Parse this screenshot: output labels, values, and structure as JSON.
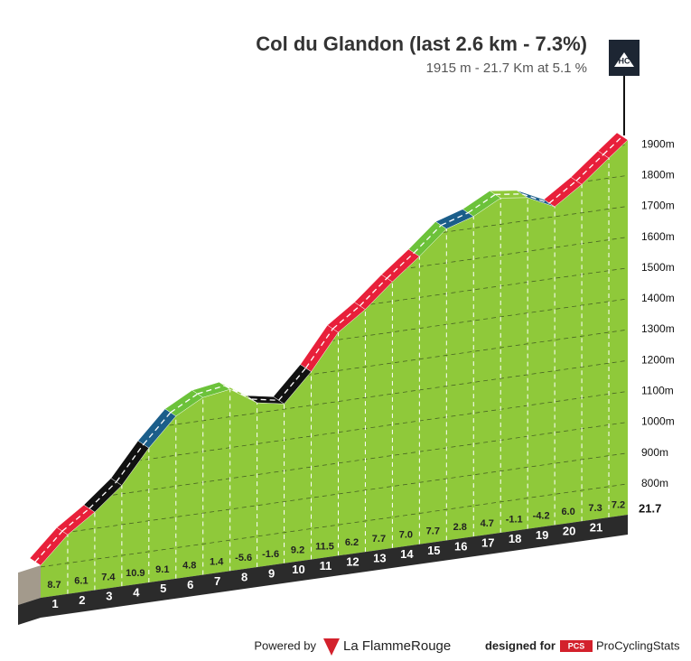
{
  "chart_data": {
    "type": "climb-profile",
    "title": "Col du Glandon (last 2.6 km - 7.3%)",
    "subtitle": "1915 m - 21.7 Km at 5.1 %",
    "climb_category": "HC",
    "x": [
      0,
      1,
      2,
      3,
      4,
      5,
      6,
      7,
      8,
      9,
      10,
      11,
      12,
      13,
      14,
      15,
      16,
      17,
      18,
      19,
      20,
      21,
      21.7
    ],
    "elevations": [
      805,
      892,
      953,
      1027,
      1136,
      1227,
      1275,
      1289,
      1233,
      1217,
      1309,
      1424,
      1486,
      1563,
      1633,
      1710,
      1738,
      1785,
      1774,
      1732,
      1792,
      1865,
      1915
    ],
    "gradients": [
      8.7,
      6.1,
      7.4,
      10.9,
      9.1,
      4.8,
      1.4,
      -5.6,
      -1.6,
      9.2,
      11.5,
      6.2,
      7.7,
      7.0,
      7.7,
      2.8,
      4.7,
      -1.1,
      -4.2,
      6.0,
      7.3,
      7.2
    ],
    "gradient_labels": [
      "8.7",
      "6.1",
      "7.4",
      "10.9",
      "9.1",
      "4.8",
      "1.4",
      "-5.6",
      "-1.6",
      "9.2",
      "11.5",
      "6.2",
      "7.7",
      "7.0",
      "7.7",
      "2.8",
      "4.7",
      "-1.1",
      "-4.2",
      "6.0",
      "7.3",
      "7.2"
    ],
    "segment_colors": [
      "#e8203a",
      "#e8203a",
      "#111111",
      "#111111",
      "#1b5e8a",
      "#6cc23a",
      "#6cc23a",
      "#8fc93a",
      "#111111",
      "#111111",
      "#e8203a",
      "#e8203a",
      "#e8203a",
      "#e8203a",
      "#6cc23a",
      "#1b5e8a",
      "#6cc23a",
      "#8fc93a",
      "#1b5e8a",
      "#e8203a",
      "#e8203a",
      "#e8203a"
    ],
    "face_color": "#8fc93a",
    "ylim": [
      700,
      1950
    ],
    "yticks": [
      {
        "value": 800,
        "label": "800m"
      },
      {
        "value": 900,
        "label": "900m"
      },
      {
        "value": 1000,
        "label": "1000m"
      },
      {
        "value": 1100,
        "label": "1100m"
      },
      {
        "value": 1200,
        "label": "1200m"
      },
      {
        "value": 1300,
        "label": "1300m"
      },
      {
        "value": 1400,
        "label": "1400m"
      },
      {
        "value": 1500,
        "label": "1500m"
      },
      {
        "value": 1600,
        "label": "1600m"
      },
      {
        "value": 1700,
        "label": "1700m"
      },
      {
        "value": 1800,
        "label": "1800m"
      },
      {
        "value": 1900,
        "label": "1900m"
      }
    ],
    "grid": true
  },
  "footer": {
    "powered": "Powered by",
    "brand": "La FlammeRouge",
    "designed": "designed for",
    "pcs": "PCS",
    "pcs_name": "ProCyclingStats"
  }
}
